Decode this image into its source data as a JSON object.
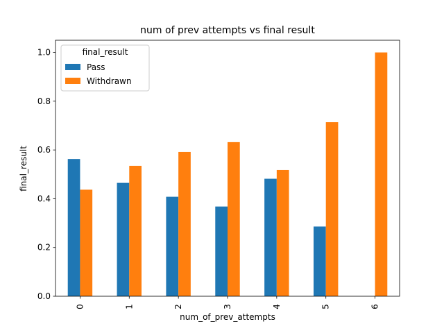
{
  "chart_data": {
    "type": "bar",
    "title": "num of prev attempts vs final result",
    "xlabel": "num_of_prev_attempts",
    "ylabel": "final_result",
    "categories": [
      "0",
      "1",
      "2",
      "3",
      "4",
      "5",
      "6"
    ],
    "series": [
      {
        "name": "Pass",
        "color": "#1f77b4",
        "values": [
          0.563,
          0.465,
          0.408,
          0.368,
          0.482,
          0.286,
          0.0
        ]
      },
      {
        "name": "Withdrawn",
        "color": "#ff7f0e",
        "values": [
          0.437,
          0.535,
          0.592,
          0.632,
          0.518,
          0.714,
          1.0
        ]
      }
    ],
    "ylim": [
      0,
      1.05
    ],
    "yticks": [
      "0.0",
      "0.2",
      "0.4",
      "0.6",
      "0.8",
      "1.0"
    ],
    "legend": {
      "title": "final_result",
      "placement": "top-left"
    },
    "grid": false
  }
}
